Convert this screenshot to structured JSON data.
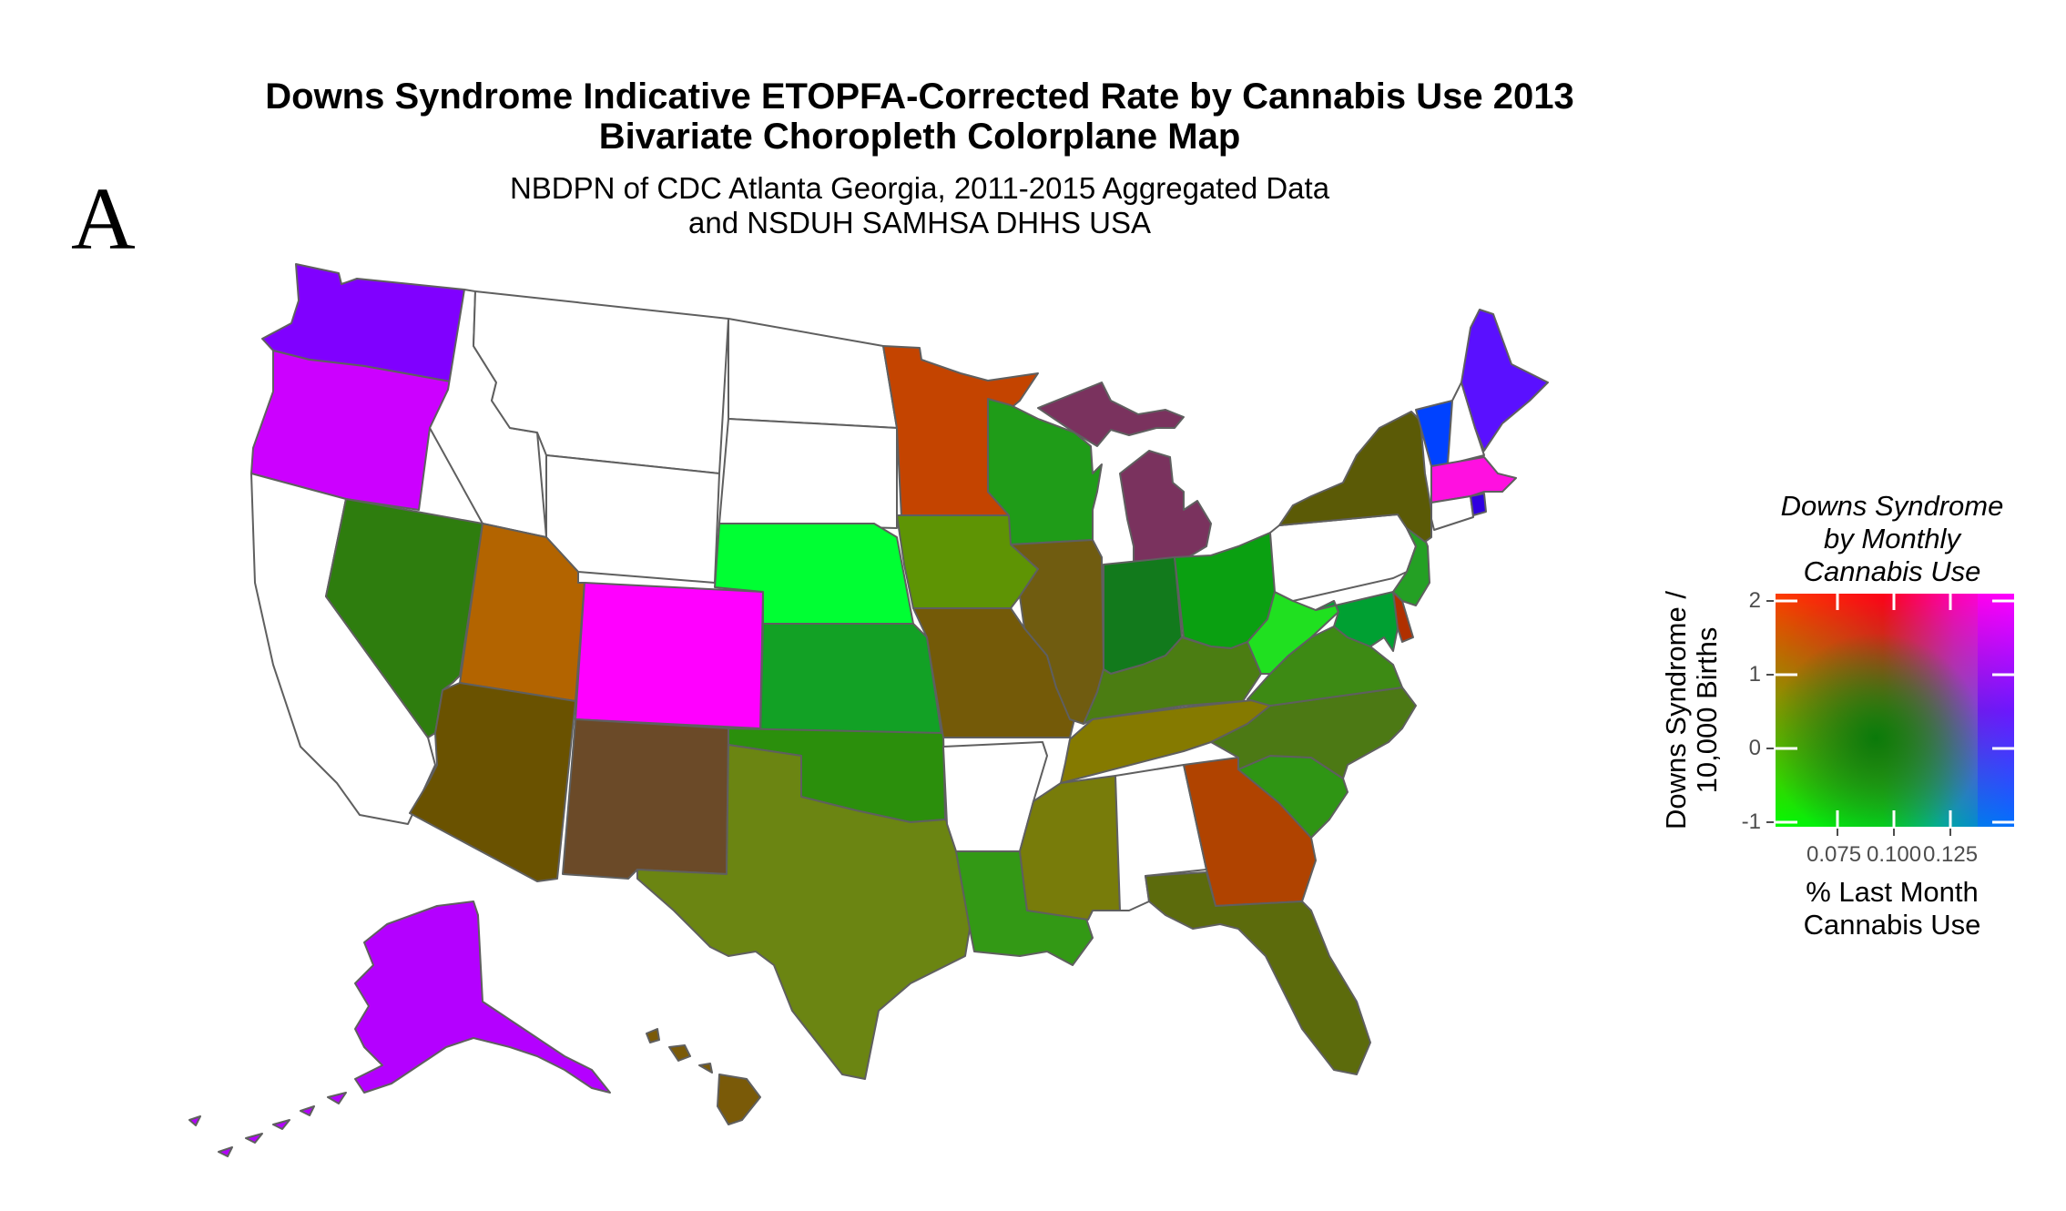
{
  "panel_label": "A",
  "title": {
    "line1": "Downs Syndrome Indicative ETOPFA-Corrected Rate by Cannabis Use 2013",
    "line2": "Bivariate Choropleth Colorplane Map"
  },
  "subtitle": {
    "line1": "NBDPN of CDC Atlanta Georgia, 2011-2015 Aggregated Data",
    "line2": "and NSDUH SAMHSA DHHS USA"
  },
  "legend": {
    "title_lines": [
      "Downs Syndrome",
      "by Monthly",
      "Cannabis Use"
    ],
    "y_label_lines": [
      "Downs Syndrome /",
      "10,000 Births"
    ],
    "y_ticks": [
      "2",
      "1",
      "0",
      "-1"
    ],
    "x_ticks": [
      "0.075",
      "0.100",
      "0.125"
    ],
    "x_label_lines": [
      "% Last Month",
      "Cannabis Use"
    ],
    "corner_colors": {
      "top_left": "#ff3000",
      "top_right": "#ff00ff",
      "bottom_left": "#00ff00",
      "bottom_right": "#0060ff",
      "center": "#0a7a0a"
    }
  },
  "map_data": {
    "no_data_color": "#ffffff",
    "border_color": "#5f5f5f",
    "states": [
      {
        "id": "WA",
        "color": "#8000ff"
      },
      {
        "id": "OR",
        "color": "#cc00ff"
      },
      {
        "id": "NV",
        "color": "#2e7d0e"
      },
      {
        "id": "UT",
        "color": "#b36400"
      },
      {
        "id": "AZ",
        "color": "#6a5200"
      },
      {
        "id": "CO",
        "color": "#ff00ff"
      },
      {
        "id": "NM",
        "color": "#6b4a28"
      },
      {
        "id": "NE",
        "color": "#00ff33"
      },
      {
        "id": "KS",
        "color": "#12a125"
      },
      {
        "id": "OK",
        "color": "#2b8f0c"
      },
      {
        "id": "TX",
        "color": "#6b8512"
      },
      {
        "id": "MN",
        "color": "#c44400"
      },
      {
        "id": "IA",
        "color": "#5e9404"
      },
      {
        "id": "MO",
        "color": "#745a08"
      },
      {
        "id": "LA",
        "color": "#339915"
      },
      {
        "id": "WI",
        "color": "#1f9c18"
      },
      {
        "id": "IL",
        "color": "#705c10"
      },
      {
        "id": "MI",
        "color": "#7a325e"
      },
      {
        "id": "IN",
        "color": "#127a1c"
      },
      {
        "id": "OH",
        "color": "#0aa011"
      },
      {
        "id": "KY",
        "color": "#4b7d12"
      },
      {
        "id": "TN",
        "color": "#857a00"
      },
      {
        "id": "MS",
        "color": "#787c0a"
      },
      {
        "id": "GA",
        "color": "#b04300"
      },
      {
        "id": "FL",
        "color": "#5c6b0c"
      },
      {
        "id": "SC",
        "color": "#2f9514"
      },
      {
        "id": "NC",
        "color": "#4c7914"
      },
      {
        "id": "VA",
        "color": "#3d8a14"
      },
      {
        "id": "WV",
        "color": "#20e020"
      },
      {
        "id": "MD",
        "color": "#00a032"
      },
      {
        "id": "DE",
        "color": "#b03000"
      },
      {
        "id": "NJ",
        "color": "#24a024"
      },
      {
        "id": "NY",
        "color": "#5b5a06"
      },
      {
        "id": "VT",
        "color": "#0042ff"
      },
      {
        "id": "NH",
        "color": "#ffffff"
      },
      {
        "id": "ME",
        "color": "#5a10ff"
      },
      {
        "id": "MA",
        "color": "#ff10e0"
      },
      {
        "id": "RI",
        "color": "#3000e0"
      },
      {
        "id": "CT",
        "color": "#ffffff"
      },
      {
        "id": "PA",
        "color": "#ffffff"
      },
      {
        "id": "AR",
        "color": "#ffffff"
      },
      {
        "id": "AL",
        "color": "#ffffff"
      },
      {
        "id": "ND",
        "color": "#ffffff"
      },
      {
        "id": "SD",
        "color": "#ffffff"
      },
      {
        "id": "MT",
        "color": "#ffffff"
      },
      {
        "id": "WY",
        "color": "#ffffff"
      },
      {
        "id": "ID",
        "color": "#ffffff"
      },
      {
        "id": "CA",
        "color": "#ffffff"
      },
      {
        "id": "AK",
        "color": "#b400ff"
      },
      {
        "id": "HI",
        "color": "#7a5a08"
      }
    ]
  }
}
